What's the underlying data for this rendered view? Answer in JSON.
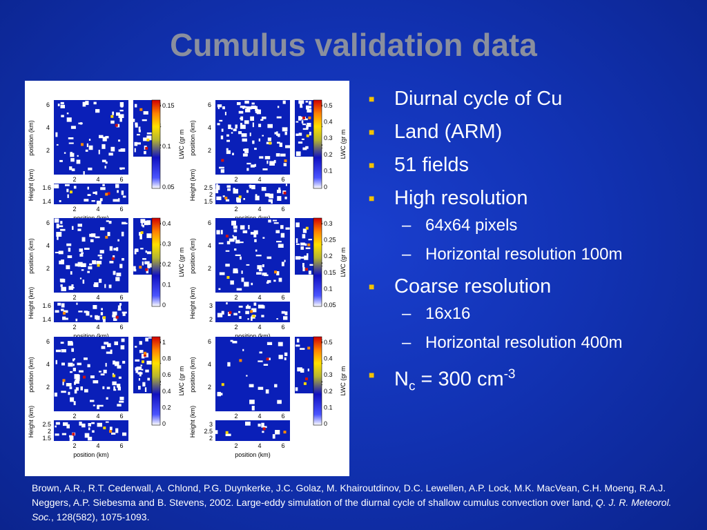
{
  "title": "Cumulus validation data",
  "bullets": {
    "diurnal": "Diurnal cycle of Cu",
    "land": "Land (ARM)",
    "fields": "51 fields",
    "high": "High resolution",
    "high_pixels": "64x64 pixels",
    "high_res": "Horizontal resolution 100m",
    "coarse": "Coarse resolution",
    "coarse_pixels": "16x16",
    "coarse_res": "Horizontal resolution 400m",
    "nc_main": "N",
    "nc_sub": "c",
    "nc_value": " = 300 cm",
    "nc_exp": "-3",
    "dash": "–"
  },
  "citation": {
    "main": "Brown, A.R., R.T. Cederwall, A. Chlond, P.G. Duynkerke, J.C. Golaz, M. Khairoutdinov, D.C. Lewellen, A.P. Lock, M.K. MacVean, C.H. Moeng, R.A.J. Neggers, A.P. Siebesma and B. Stevens, 2002. Large-eddy simulation of the diurnal cycle of shallow cumulus convection over land, ",
    "journal": "Q. J. R. Meteorol. Soc.",
    "rest": ", 128(582), 1075-1093."
  },
  "colors": {
    "plot_bg": "#0a1fb8",
    "cloud": "#ffffff",
    "bullet_marker": "#f2c200",
    "title": "#8a8f9e"
  },
  "chart_data": {
    "type": "heatmap",
    "axis_labels": {
      "position": "position (km)",
      "height": "Height (km)",
      "lwc": "LWC (gr m"
    },
    "position_ticks": [
      "2",
      "4",
      "6"
    ],
    "panels": [
      {
        "height_ticks": [
          "1.6",
          "1.4"
        ],
        "colorbar_ticks": [
          "0.15",
          "0.1",
          "0.05"
        ],
        "cloud_density": 0.12,
        "seed": 3
      },
      {
        "height_ticks": [
          "2.5",
          "2",
          "1.5"
        ],
        "colorbar_ticks": [
          "0.5",
          "0.4",
          "0.3",
          "0.2",
          "0.1",
          "0"
        ],
        "cloud_density": 0.18,
        "seed": 7
      },
      {
        "height_ticks": [
          "1.6",
          "1.4"
        ],
        "colorbar_ticks": [
          "0.4",
          "0.3",
          "0.2",
          "0.1",
          "0"
        ],
        "cloud_density": 0.16,
        "seed": 11
      },
      {
        "height_ticks": [
          "3",
          "2"
        ],
        "colorbar_ticks": [
          "0.3",
          "0.25",
          "0.2",
          "0.15",
          "0.1",
          "0.05"
        ],
        "cloud_density": 0.13,
        "seed": 19
      },
      {
        "height_ticks": [
          "2.5",
          "2",
          "1.5"
        ],
        "colorbar_ticks": [
          "1",
          "0.8",
          "0.6",
          "0.4",
          "0.2",
          "0"
        ],
        "cloud_density": 0.15,
        "seed": 23
      },
      {
        "height_ticks": [
          "3",
          "2.5",
          "2"
        ],
        "colorbar_ticks": [
          "0.5",
          "0.4",
          "0.3",
          "0.2",
          "0.1",
          "0"
        ],
        "cloud_density": 0.05,
        "seed": 31
      }
    ]
  }
}
